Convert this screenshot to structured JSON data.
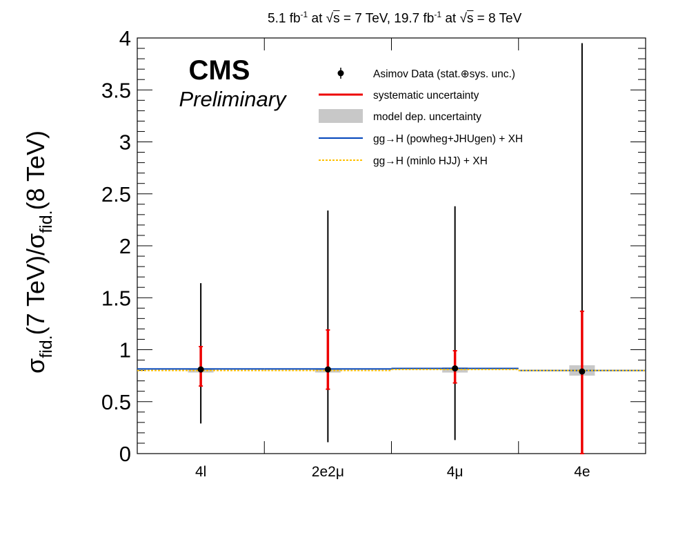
{
  "header": {
    "lumi_7": "5.1 fb",
    "lumi_7_exp": "-1",
    "lumi_7_at": " at ",
    "sqrt_sym": "√",
    "s": "s",
    "energy_7": " = 7 TeV, 19.7 fb",
    "lumi_8_exp": "-1",
    "lumi_8_at": " at ",
    "energy_8": " = 8 TeV"
  },
  "labels": {
    "cms": "CMS",
    "preliminary": "Preliminary"
  },
  "colors": {
    "data": "#000000",
    "systematic": "#ee0000",
    "model": "#c8c8c8",
    "powheg": "#0044bb",
    "minlo": "#ffc000"
  },
  "chart_data": {
    "type": "scatter",
    "ylabel": {
      "sigma": "σ",
      "fid": "fid.",
      "num": "(7 TeV)/",
      "den": "(8 TeV)"
    },
    "ylim": [
      0,
      4
    ],
    "y_ticks": [
      "0",
      "0.5",
      "1",
      "1.5",
      "2",
      "2.5",
      "3",
      "3.5",
      "4"
    ],
    "y_tick_values": [
      0,
      0.5,
      1,
      1.5,
      2,
      2.5,
      3,
      3.5,
      4
    ],
    "categories": [
      "4l",
      "2e2μ",
      "4μ",
      "4e"
    ],
    "legend": {
      "position": "top-right",
      "entries": [
        {
          "label": "Asimov Data (stat.⊕sys. unc.)",
          "style": "marker"
        },
        {
          "label": "systematic uncertainty",
          "style": "red-line"
        },
        {
          "label": "model dep. uncertainty",
          "style": "grey-box"
        },
        {
          "label": "gg→H (powheg+JHUgen) + XH",
          "style": "blue-line"
        },
        {
          "label": "gg→H (minlo HJJ) + XH",
          "style": "yellow-dashed"
        }
      ]
    },
    "series": [
      {
        "name": "Asimov Data (stat.⊕sys. unc.)",
        "values": [
          0.81,
          0.81,
          0.82,
          0.79
        ],
        "err_low": [
          0.29,
          0.11,
          0.13,
          0.0
        ],
        "err_high": [
          1.64,
          2.34,
          2.38,
          3.95
        ]
      },
      {
        "name": "systematic uncertainty",
        "low": [
          0.65,
          0.62,
          0.68,
          0.0
        ],
        "high": [
          1.03,
          1.19,
          0.99,
          1.37
        ]
      },
      {
        "name": "model dep. uncertainty",
        "low": [
          0.78,
          0.78,
          0.78,
          0.75
        ],
        "high": [
          0.82,
          0.82,
          0.83,
          0.85
        ]
      },
      {
        "name": "gg→H (powheg+JHUgen) + XH",
        "values": [
          0.815,
          0.815,
          0.82,
          0.8
        ]
      },
      {
        "name": "gg→H (minlo HJJ) + XH",
        "values": [
          0.8,
          0.8,
          0.81,
          0.8
        ]
      }
    ]
  }
}
